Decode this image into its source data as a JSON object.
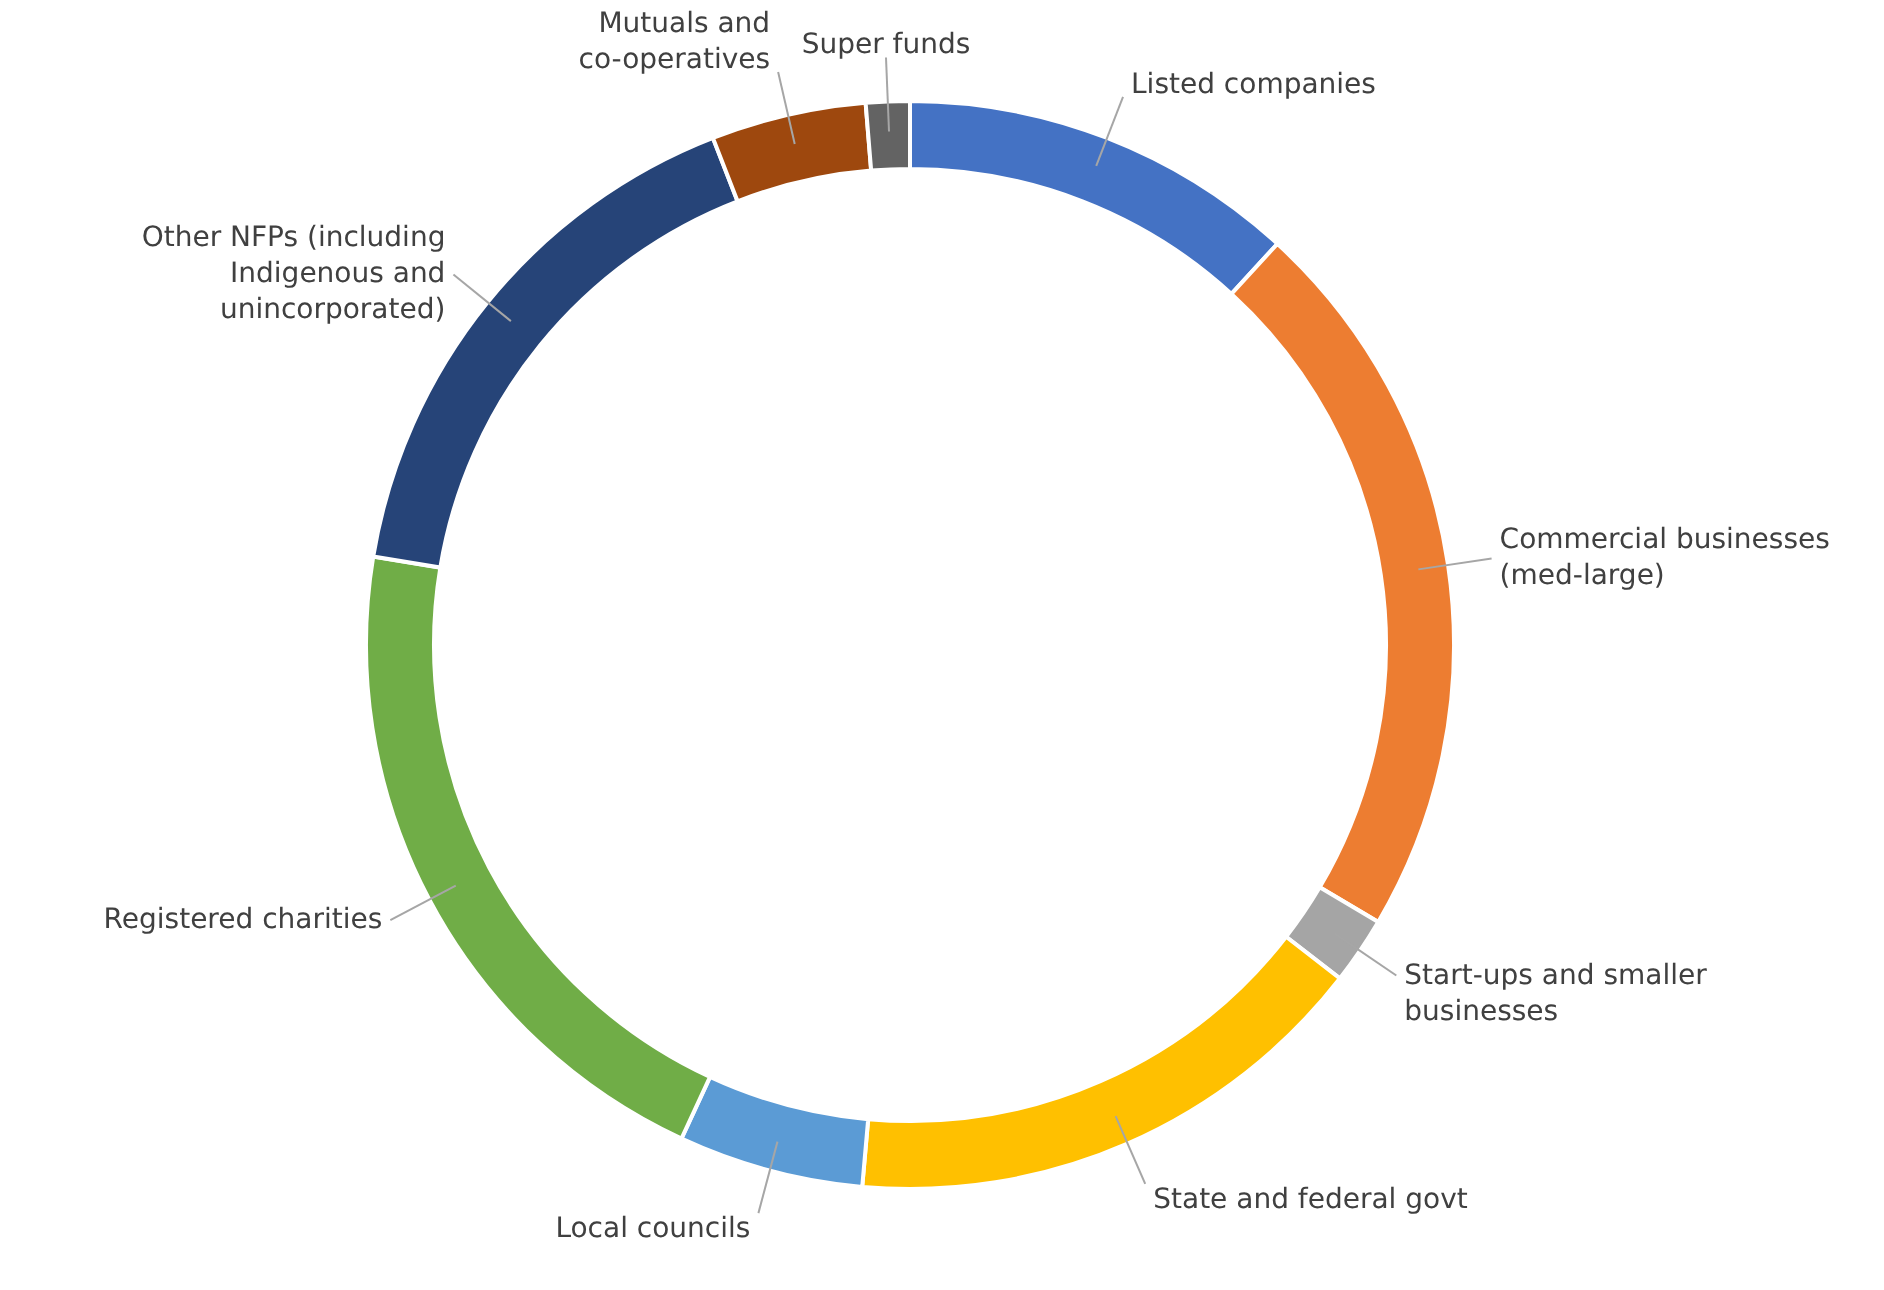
{
  "chart_data": {
    "type": "donut",
    "categories": [
      "Listed companies",
      "Commercial businesses (med-large)",
      "Start-ups and smaller businesses",
      "State and federal govt",
      "Local councils",
      "Registered charities",
      "Other NFPs (including Indigenous and unincorporated)",
      "Mutuals and co-operatives",
      "Super funds"
    ],
    "values": [
      11.8,
      21.7,
      2.0,
      15.9,
      5.5,
      20.7,
      16.5,
      4.6,
      1.3
    ],
    "colors": [
      "#4472c4",
      "#ed7d31",
      "#a5a5a5",
      "#ffc000",
      "#5b9bd5",
      "#70ad47",
      "#264478",
      "#9e480e",
      "#636363"
    ]
  }
}
